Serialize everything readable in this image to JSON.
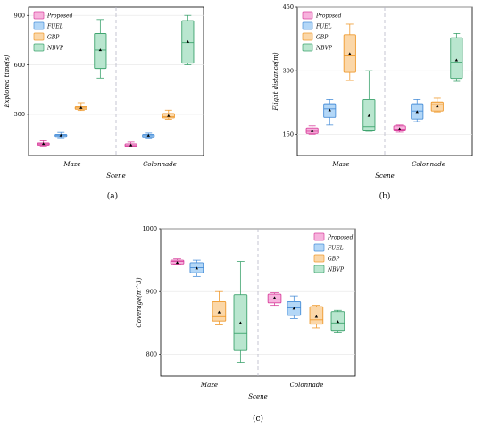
{
  "series_colors": {
    "Proposed": {
      "fill": "#f7b3dd",
      "stroke": "#d9439e"
    },
    "FUEL": {
      "fill": "#b3d7f7",
      "stroke": "#4a8fd8"
    },
    "GBP": {
      "fill": "#fbd7a8",
      "stroke": "#ef9a2e"
    },
    "NBVP": {
      "fill": "#b9e6cf",
      "stroke": "#3fa46f"
    }
  },
  "chart_data": [
    {
      "type": "box",
      "panel_label": "(a)",
      "xlabel": "Scene",
      "ylabel": "Explored time(s)",
      "categories": [
        "Maze",
        "Colonnade"
      ],
      "ylim": [
        50,
        950
      ],
      "yticks": [
        300,
        600,
        900
      ],
      "grid": true,
      "legend": "top-left",
      "series": [
        {
          "name": "Proposed",
          "boxes": [
            {
              "min": 108,
              "q1": 113,
              "median": 120,
              "q3": 126,
              "max": 140,
              "mean": 121
            },
            {
              "min": 102,
              "q1": 105,
              "median": 110,
              "q3": 121,
              "max": 132,
              "mean": 113
            }
          ]
        },
        {
          "name": "FUEL",
          "boxes": [
            {
              "min": 158,
              "q1": 165,
              "median": 173,
              "q3": 178,
              "max": 190,
              "mean": 172
            },
            {
              "min": 157,
              "q1": 162,
              "median": 170,
              "q3": 178,
              "max": 186,
              "mean": 171
            }
          ]
        },
        {
          "name": "GBP",
          "boxes": [
            {
              "min": 323,
              "q1": 330,
              "median": 338,
              "q3": 346,
              "max": 370,
              "mean": 339
            },
            {
              "min": 270,
              "q1": 278,
              "median": 285,
              "q3": 305,
              "max": 325,
              "mean": 291
            }
          ]
        },
        {
          "name": "NBVP",
          "boxes": [
            {
              "min": 520,
              "q1": 578,
              "median": 690,
              "q3": 790,
              "max": 875,
              "mean": 690
            },
            {
              "min": 600,
              "q1": 610,
              "median": 735,
              "q3": 868,
              "max": 900,
              "mean": 740
            }
          ]
        }
      ]
    },
    {
      "type": "box",
      "panel_label": "(b)",
      "xlabel": "Scene",
      "ylabel": "Flight distance(m)",
      "categories": [
        "Maze",
        "Colonnade"
      ],
      "ylim": [
        100,
        450
      ],
      "yticks": [
        150,
        300,
        450
      ],
      "grid": true,
      "legend": "top-left",
      "series": [
        {
          "name": "Proposed",
          "boxes": [
            {
              "min": 150,
              "q1": 152,
              "median": 157,
              "q3": 165,
              "max": 170,
              "mean": 158
            },
            {
              "min": 155,
              "q1": 158,
              "median": 162,
              "q3": 170,
              "max": 172,
              "mean": 163
            }
          ]
        },
        {
          "name": "FUEL",
          "boxes": [
            {
              "min": 172,
              "q1": 190,
              "median": 210,
              "q3": 222,
              "max": 232,
              "mean": 207
            },
            {
              "min": 180,
              "q1": 186,
              "median": 205,
              "q3": 222,
              "max": 232,
              "mean": 203
            }
          ]
        },
        {
          "name": "GBP",
          "boxes": [
            {
              "min": 277,
              "q1": 296,
              "median": 335,
              "q3": 385,
              "max": 410,
              "mean": 340
            },
            {
              "min": 203,
              "q1": 205,
              "median": 220,
              "q3": 226,
              "max": 235,
              "mean": 216
            }
          ]
        },
        {
          "name": "NBVP",
          "boxes": [
            {
              "min": 157,
              "q1": 158,
              "median": 168,
              "q3": 232,
              "max": 300,
              "mean": 194
            },
            {
              "min": 275,
              "q1": 282,
              "median": 320,
              "q3": 378,
              "max": 388,
              "mean": 325
            }
          ]
        }
      ]
    },
    {
      "type": "box",
      "panel_label": "(c)",
      "xlabel": "Scene",
      "ylabel": "Coverage(m^3)",
      "categories": [
        "Maze",
        "Colonnade"
      ],
      "ylim": [
        765,
        1000
      ],
      "yticks": [
        800,
        900,
        1000
      ],
      "grid": true,
      "legend": "top-right",
      "series": [
        {
          "name": "Proposed",
          "boxes": [
            {
              "min": 943,
              "q1": 944,
              "median": 948,
              "q3": 950,
              "max": 952,
              "mean": 946
            },
            {
              "min": 878,
              "q1": 882,
              "median": 888,
              "q3": 896,
              "max": 898,
              "mean": 890
            }
          ]
        },
        {
          "name": "FUEL",
          "boxes": [
            {
              "min": 924,
              "q1": 930,
              "median": 938,
              "q3": 946,
              "max": 950,
              "mean": 937
            },
            {
              "min": 857,
              "q1": 862,
              "median": 874,
              "q3": 884,
              "max": 893,
              "mean": 873
            }
          ]
        },
        {
          "name": "GBP",
          "boxes": [
            {
              "min": 847,
              "q1": 853,
              "median": 860,
              "q3": 884,
              "max": 900,
              "mean": 867
            },
            {
              "min": 842,
              "q1": 848,
              "median": 855,
              "q3": 876,
              "max": 878,
              "mean": 860
            }
          ]
        },
        {
          "name": "NBVP",
          "boxes": [
            {
              "min": 787,
              "q1": 806,
              "median": 833,
              "q3": 895,
              "max": 948,
              "mean": 850
            },
            {
              "min": 834,
              "q1": 838,
              "median": 850,
              "q3": 868,
              "max": 870,
              "mean": 852
            }
          ]
        }
      ]
    }
  ]
}
